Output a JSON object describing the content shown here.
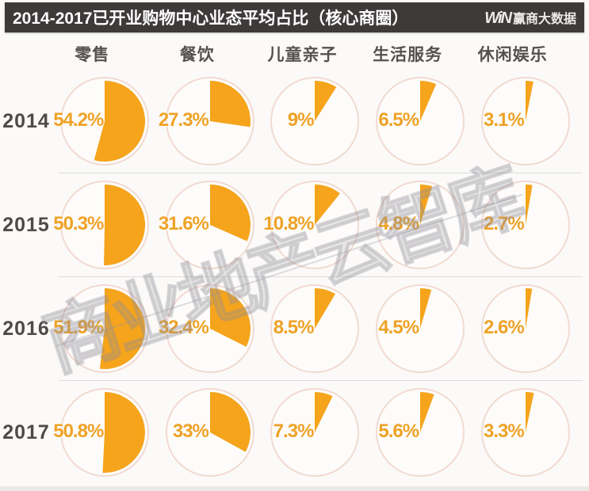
{
  "header": {
    "title": "2014-2017已开业购物中心业态平均占比（核心商圈）",
    "logo_mark": "WiN",
    "logo_name": "赢商大数据"
  },
  "watermark": {
    "text": "商业地产云智库"
  },
  "chart_data": {
    "type": "pie",
    "title": "2014-2017已开业购物中心业态平均占比（核心商圈）",
    "categories": [
      "零售",
      "餐饮",
      "儿童亲子",
      "生活服务",
      "休闲娱乐"
    ],
    "unit": "%",
    "wedge_style": "start at 12 o'clock, sweep clockwise",
    "rows": [
      {
        "year": "2014",
        "values": [
          54.2,
          27.3,
          9,
          6.5,
          3.1
        ],
        "labels": [
          "54.2%",
          "27.3%",
          "9%",
          "6.5%",
          "3.1%"
        ]
      },
      {
        "year": "2015",
        "values": [
          50.3,
          31.6,
          10.8,
          4.8,
          2.7
        ],
        "labels": [
          "50.3%",
          "31.6%",
          "10.8%",
          "4.8%",
          "2.7%"
        ]
      },
      {
        "year": "2016",
        "values": [
          51.9,
          32.4,
          8.5,
          4.5,
          2.6
        ],
        "labels": [
          "51.9%",
          "32.4%",
          "8.5%",
          "4.5%",
          "2.6%"
        ]
      },
      {
        "year": "2017",
        "values": [
          50.8,
          33,
          7.3,
          5.6,
          3.3
        ],
        "labels": [
          "50.8%",
          "33%",
          "7.3%",
          "5.6%",
          "3.3%"
        ]
      }
    ]
  },
  "colors": {
    "accent_orange": "#F5A41C",
    "value_label_orange": "#EFA226",
    "circle_stroke": "#F2DAD2",
    "header_bg": "#3E3A39",
    "header_text": "#FFFFFF",
    "year_text": "#4E4A49",
    "column_text": "#56514F",
    "divider": "#DDDCDF",
    "background": "#FBFAF8"
  }
}
